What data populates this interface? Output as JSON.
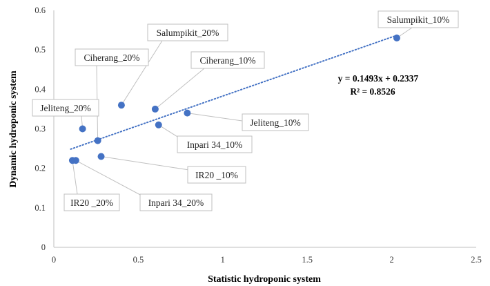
{
  "chart_data": {
    "type": "scatter",
    "xlabel": "Statistic hydroponic system",
    "ylabel": "Dynamic hydroponic system",
    "xlim": [
      0,
      2.5
    ],
    "ylim": [
      0,
      0.6
    ],
    "xticks": [
      0,
      0.5,
      1,
      1.5,
      2,
      2.5
    ],
    "yticks": [
      0,
      0.1,
      0.2,
      0.3,
      0.4,
      0.5,
      0.6
    ],
    "xtick_labels": [
      "0",
      "0.5",
      "1",
      "1.5",
      "2",
      "2.5"
    ],
    "ytick_labels": [
      "0",
      "0.1",
      "0.2",
      "0.3",
      "0.4",
      "0.5",
      "0.6"
    ],
    "grid": false,
    "marker_color": "#4472C4",
    "points": [
      {
        "label": "Salumpikit_10%",
        "x": 2.03,
        "y": 0.53
      },
      {
        "label": "Salumpikit_20%",
        "x": 0.4,
        "y": 0.36
      },
      {
        "label": "Ciherang_20%",
        "x": 0.26,
        "y": 0.27
      },
      {
        "label": "Ciherang_10%",
        "x": 0.6,
        "y": 0.35
      },
      {
        "label": "Jeliteng_20%",
        "x": 0.17,
        "y": 0.3
      },
      {
        "label": "Jeliteng_10%",
        "x": 0.79,
        "y": 0.34
      },
      {
        "label": "Inpari 34_10%",
        "x": 0.62,
        "y": 0.31
      },
      {
        "label": "IR20 _10%",
        "x": 0.28,
        "y": 0.23
      },
      {
        "label": "IR20 _20%",
        "x": 0.11,
        "y": 0.22
      },
      {
        "label": "Inpari 34_20%",
        "x": 0.13,
        "y": 0.22
      }
    ],
    "trendline": {
      "type": "linear",
      "slope": 0.1493,
      "intercept": 0.2337,
      "x_range": [
        0.1,
        2.03
      ],
      "style": "dotted",
      "equation": "y = 0.1493x + 0.2337",
      "r_squared": "R² = 0.8526"
    }
  }
}
